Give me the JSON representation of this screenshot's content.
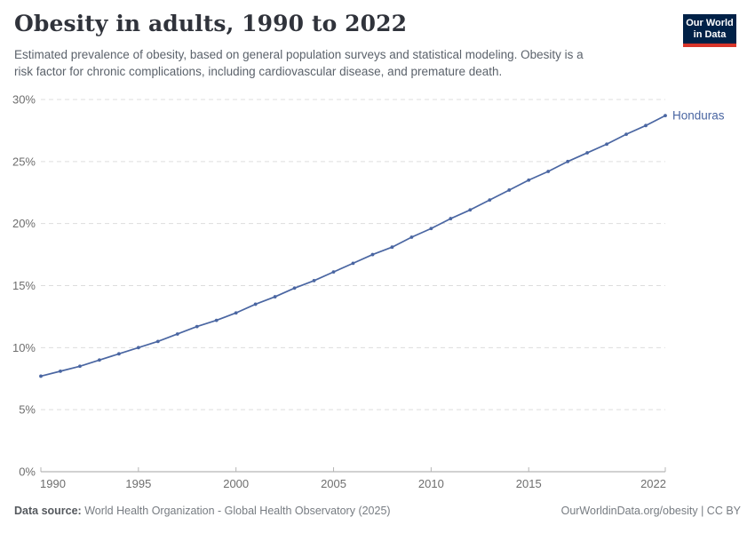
{
  "header": {
    "title": "Obesity in adults, 1990 to 2022",
    "subtitle_line1": "Estimated prevalence of obesity, based on general population surveys and statistical modeling. Obesity is a",
    "subtitle_line2": "risk factor for chronic complications, including cardiovascular disease, and premature death.",
    "logo": {
      "line1": "Our World",
      "line2": "in Data",
      "bg_color": "#002147",
      "accent_color": "#D8352A"
    }
  },
  "chart_data": {
    "type": "line",
    "title": "Obesity in adults, 1990 to 2022",
    "x": [
      1990,
      1991,
      1992,
      1993,
      1994,
      1995,
      1996,
      1997,
      1998,
      1999,
      2000,
      2001,
      2002,
      2003,
      2004,
      2005,
      2006,
      2007,
      2008,
      2009,
      2010,
      2011,
      2012,
      2013,
      2014,
      2015,
      2016,
      2017,
      2018,
      2019,
      2020,
      2021,
      2022
    ],
    "series": [
      {
        "name": "Honduras",
        "color": "#4A66A2",
        "values": [
          7.7,
          8.1,
          8.5,
          9.0,
          9.5,
          10.0,
          10.5,
          11.1,
          11.7,
          12.2,
          12.8,
          13.5,
          14.1,
          14.8,
          15.4,
          16.1,
          16.8,
          17.5,
          18.1,
          18.9,
          19.6,
          20.4,
          21.1,
          21.9,
          22.7,
          23.5,
          24.2,
          25.0,
          25.7,
          26.4,
          27.2,
          27.9,
          28.7
        ]
      }
    ],
    "end_label": "Honduras",
    "x_ticks": [
      1990,
      1995,
      2000,
      2005,
      2010,
      2015,
      2022
    ],
    "y_ticks": [
      0,
      5,
      10,
      15,
      20,
      25,
      30
    ],
    "y_tick_suffix": "%",
    "ylim": [
      0,
      30
    ],
    "xlim": [
      1990,
      2022
    ],
    "xlabel": "",
    "ylabel": "",
    "grid": "dashed-horizontal",
    "legend_position": "end-of-line",
    "colors": {
      "gridline": "#dddddd",
      "axis_line": "#a3a3a3",
      "tick_mark": "#b5b5b5",
      "tick_label": "#6e6e6e"
    }
  },
  "footer": {
    "data_source_label": "Data source:",
    "data_source_text": " World Health Organization - Global Health Observatory (2025)",
    "attribution": "OurWorldinData.org/obesity | CC BY"
  }
}
